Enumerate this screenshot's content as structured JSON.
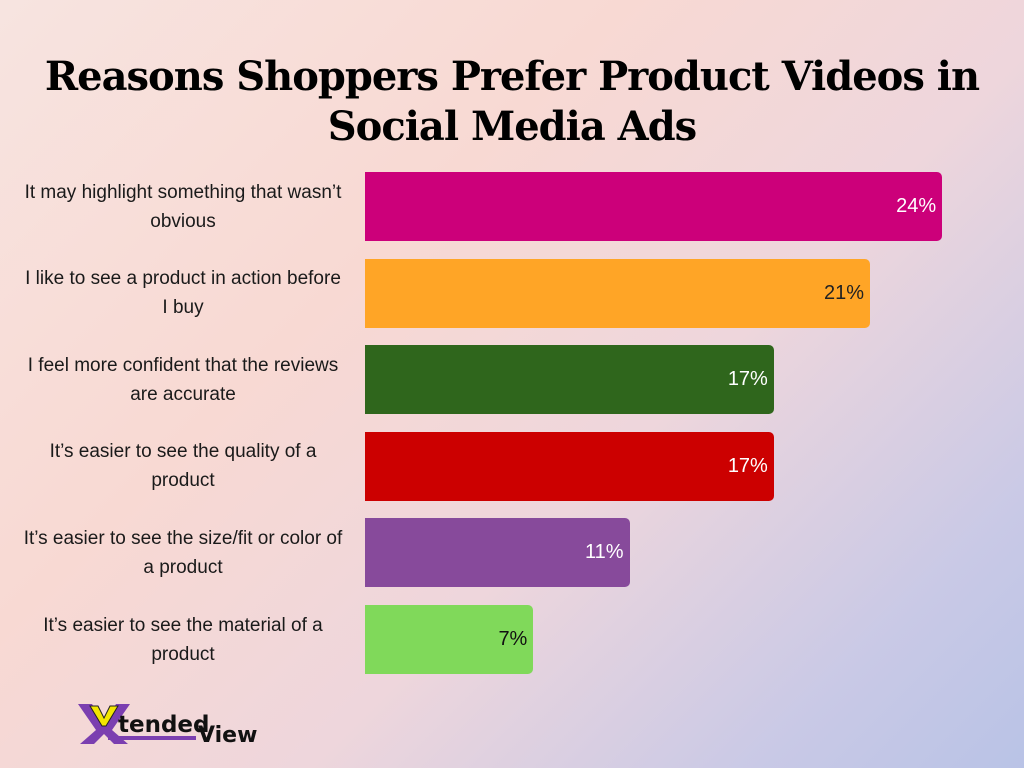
{
  "title": "Reasons Shoppers Prefer Product Videos in Social Media Ads",
  "title_line1": "Reasons Shoppers Prefer Product Videos in",
  "title_line2": "Social Media Ads",
  "bars": [
    {
      "label": "It may highlight something that wasn’t obvious",
      "value": 24,
      "value_label": "24%",
      "color": "#cc007a",
      "text_color": "#ffffff"
    },
    {
      "label": "I like to see a product in action before I buy",
      "value": 21,
      "value_label": "21%",
      "color": "#ffa526",
      "text_color": "#222222"
    },
    {
      "label": "I feel more confident that the reviews are accurate",
      "value": 17,
      "value_label": "17%",
      "color": "#2f661c",
      "text_color": "#ffffff"
    },
    {
      "label": "It’s easier to see the quality of a product",
      "value": 17,
      "value_label": "17%",
      "color": "#cc0000",
      "text_color": "#ffffff"
    },
    {
      "label": "It’s easier to see the size/fit or color of a product",
      "value": 11,
      "value_label": "11%",
      "color": "#874a9b",
      "text_color": "#ffffff"
    },
    {
      "label": "It’s easier to see the material of a product",
      "value": 7,
      "value_label": "7%",
      "color": "#80d95a",
      "text_color": "#111111"
    }
  ],
  "logo": {
    "text_part1": "tended",
    "text_part2": "View",
    "initial": "X"
  },
  "chart_data": {
    "type": "bar",
    "orientation": "horizontal",
    "title": "Reasons Shoppers Prefer Product Videos in Social Media Ads",
    "categories": [
      "It may highlight something that wasn’t obvious",
      "I like to see a product in action before I buy",
      "I feel more confident that the reviews are accurate",
      "It’s easier to see the quality of a product",
      "It’s easier to see the size/fit or color of a product",
      "It’s easier to see the material of a product"
    ],
    "values": [
      24,
      21,
      17,
      17,
      11,
      7
    ],
    "unit": "%",
    "xlabel": "",
    "ylabel": "",
    "grid": false,
    "legend": "none",
    "data_labels": true
  }
}
